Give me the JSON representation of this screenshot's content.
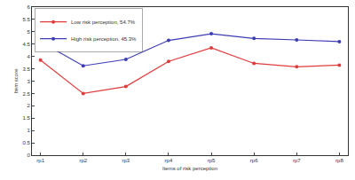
{
  "chart_data": {
    "type": "line",
    "x_label": "Items of risk perception",
    "y_label": "Item score",
    "categories": [
      "rp1",
      "rp2",
      "rp3",
      "rp4",
      "rp5",
      "rp6",
      "rp7",
      "rp8"
    ],
    "series": [
      {
        "name": "Low risk perception, 54.7%",
        "color": "#e03c3c",
        "marker": "circle",
        "values": [
          3.85,
          2.5,
          2.78,
          3.8,
          4.35,
          3.72,
          3.58,
          3.65
        ]
      },
      {
        "name": "High risk perception, 45.3%",
        "color": "#3c3cb4",
        "marker": "circle",
        "values": [
          4.6,
          3.62,
          3.88,
          4.65,
          4.92,
          4.73,
          4.67,
          4.6
        ]
      }
    ],
    "ylim": [
      0,
      6
    ],
    "yticks": [
      0,
      0.5,
      1,
      1.5,
      2,
      2.5,
      3,
      3.5,
      4,
      4.5,
      5,
      5.5,
      6
    ],
    "grid": false,
    "legend": "upper left"
  }
}
